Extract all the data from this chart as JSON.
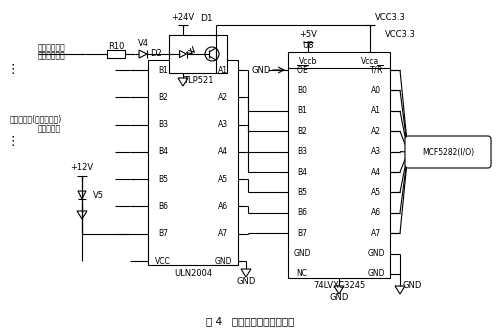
{
  "title": "图 4   开关量输入输出原理图",
  "label_switch1": "第一路开关量",
  "label_switch2": "第二路开关量",
  "label_out1": "第一路输出(驱动继电器)",
  "label_out2": "第二路输出",
  "bg_color": "#ffffff"
}
